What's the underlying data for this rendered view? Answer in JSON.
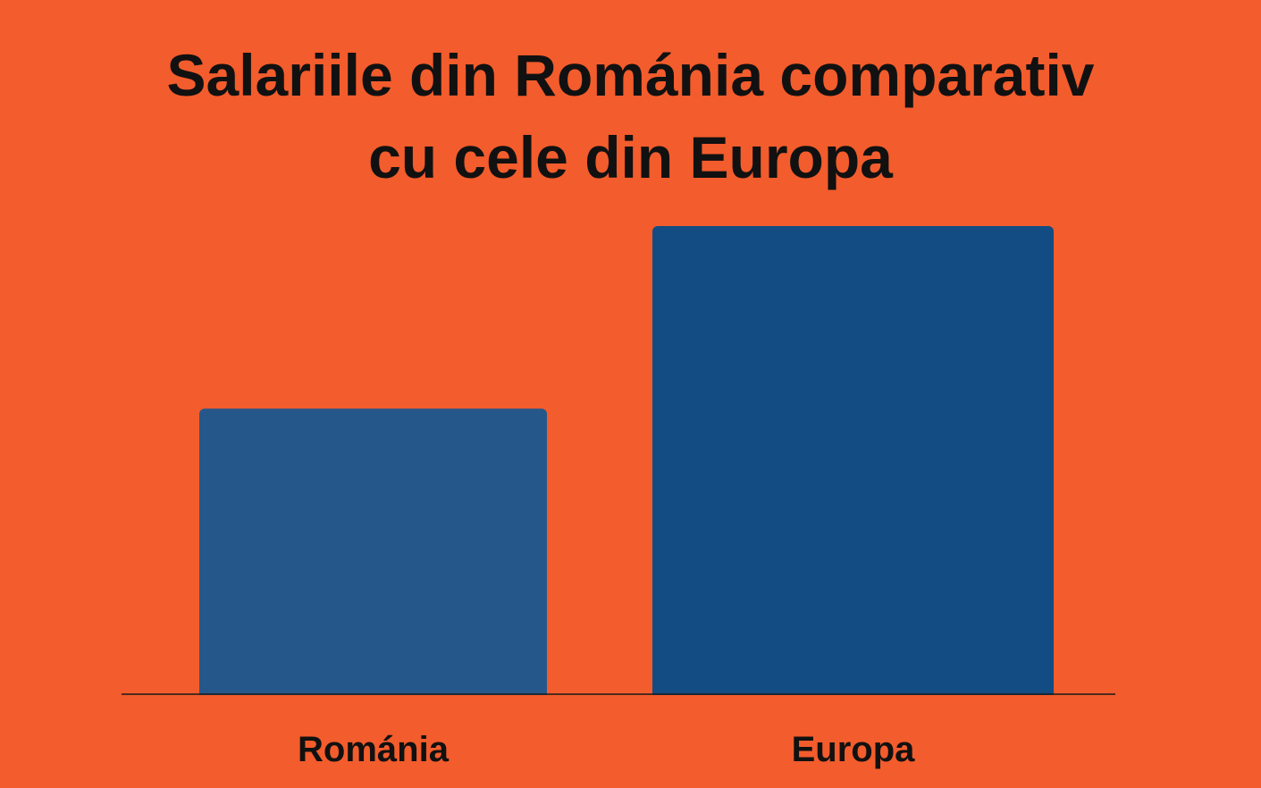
{
  "chart_data": {
    "type": "bar",
    "title_lines": [
      "Salariile din Románia comparativ",
      "cu cele din Europa"
    ],
    "categories": [
      "Románia",
      "Europa"
    ],
    "values": [
      61,
      100
    ],
    "ylim": [
      0,
      100
    ],
    "xlabel": "",
    "ylabel": "",
    "grid": false,
    "legend": "none",
    "bar_colors": [
      "#25578A",
      "#134C82"
    ],
    "axis_color": "#1A1A1A"
  },
  "colors": {
    "background": "#F35C2C",
    "text": "#111111"
  }
}
